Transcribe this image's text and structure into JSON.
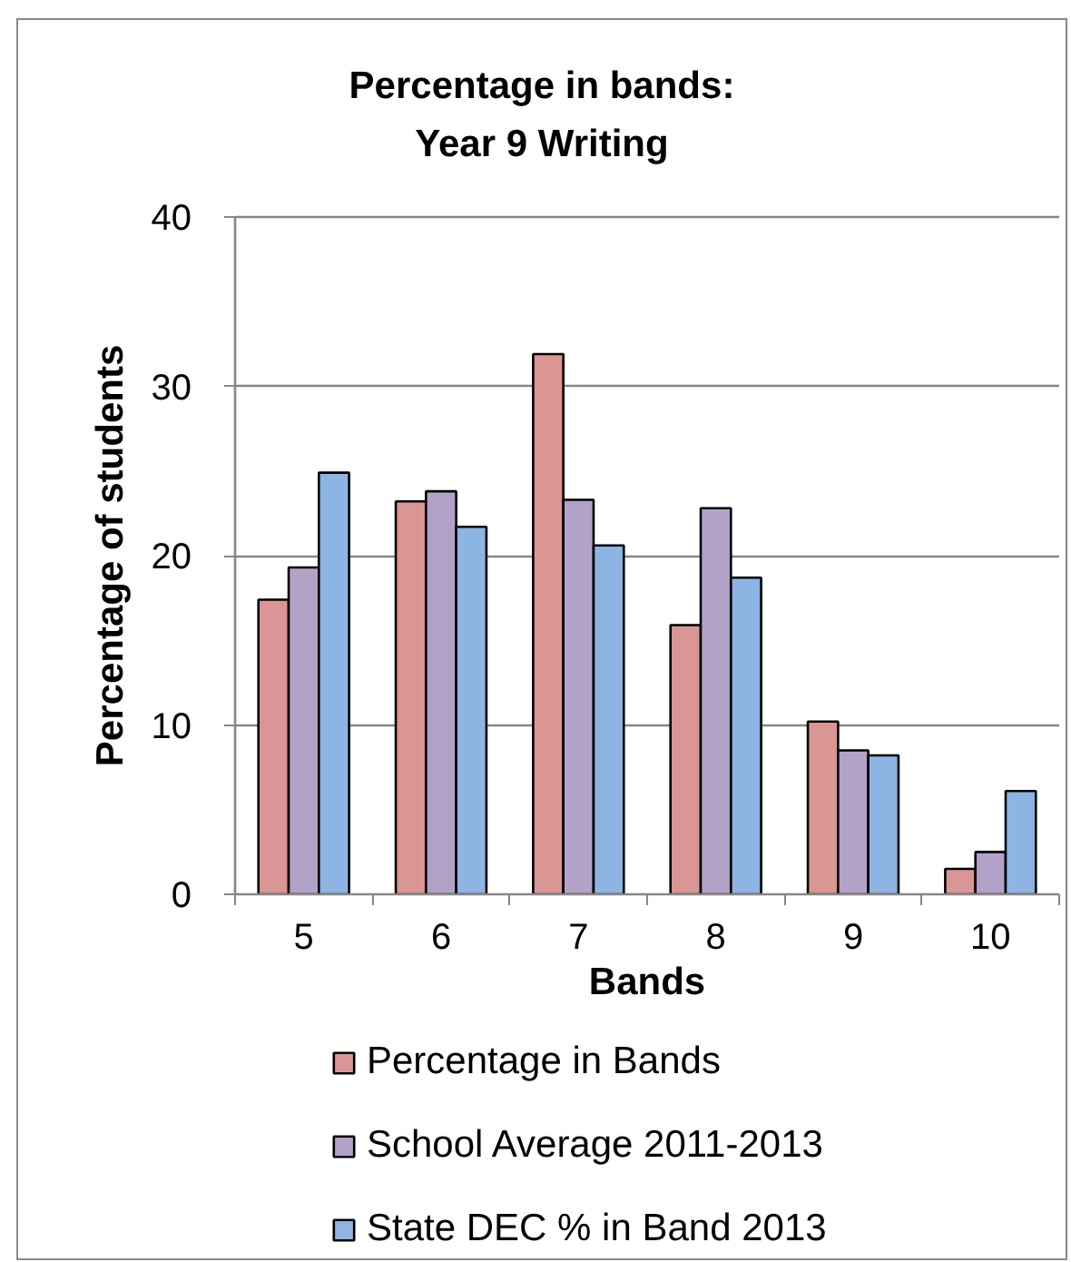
{
  "chart_data": {
    "type": "bar",
    "title": "Percentage in bands:\nYear 9 Writing",
    "xlabel": "Bands",
    "ylabel": "Percentage of students",
    "categories": [
      "5",
      "6",
      "7",
      "8",
      "9",
      "10"
    ],
    "series": [
      {
        "name": "Percentage in Bands",
        "color": "#d99694",
        "values": [
          17.4,
          23.2,
          31.9,
          15.9,
          10.2,
          1.5
        ]
      },
      {
        "name": "School Average 2011-2013",
        "color": "#b3a2c7",
        "values": [
          19.3,
          23.8,
          23.3,
          22.8,
          8.5,
          2.5
        ]
      },
      {
        "name": "State DEC % in Band 2013",
        "color": "#8eb4e3",
        "values": [
          24.9,
          21.7,
          20.6,
          18.7,
          8.2,
          6.1
        ]
      }
    ],
    "ylim": [
      0,
      40
    ],
    "yticks": [
      0,
      10,
      20,
      30,
      40
    ],
    "grid": "y",
    "legend": "bottom"
  }
}
